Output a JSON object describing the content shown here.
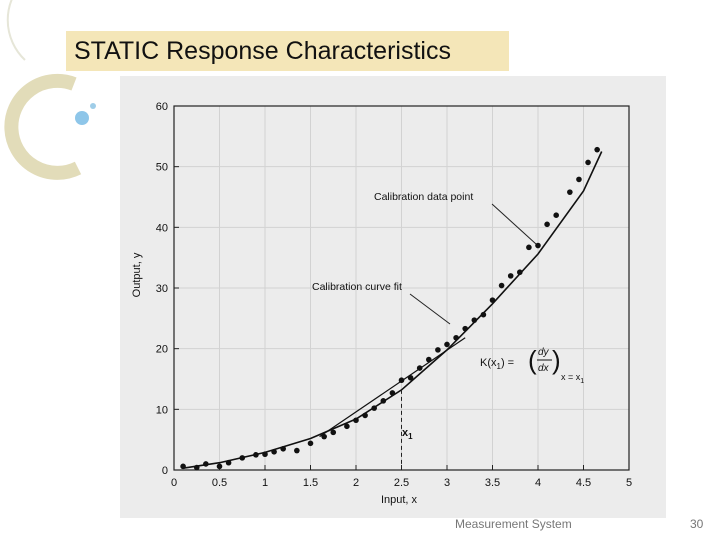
{
  "slide": {
    "title": "STATIC Response Characteristics",
    "footer": "Measurement System",
    "page_number": "30",
    "accent_color": "#f4e6b8"
  },
  "chart_data": {
    "type": "scatter",
    "title": "",
    "xlabel": "Input, x",
    "ylabel": "Output, y",
    "xlim": [
      0,
      5
    ],
    "ylim": [
      0,
      60
    ],
    "xticks": [
      0,
      0.5,
      1,
      1.5,
      2,
      2.5,
      3,
      3.5,
      4,
      4.5,
      5
    ],
    "yticks": [
      0,
      10,
      20,
      30,
      40,
      50,
      60
    ],
    "xtick_labels": [
      "0",
      "0.5",
      "1",
      "1.5",
      "2",
      "2.5",
      "3",
      "3.5",
      "4",
      "4.5",
      "5"
    ],
    "ytick_labels": [
      "0",
      "10",
      "20",
      "30",
      "40",
      "50",
      "60"
    ],
    "grid": true,
    "series": [
      {
        "kind": "points",
        "points": [
          [
            0.1,
            0.6
          ],
          [
            0.25,
            0.4
          ],
          [
            0.35,
            1.0
          ],
          [
            0.5,
            0.6
          ],
          [
            0.6,
            1.2
          ],
          [
            0.75,
            2.0
          ],
          [
            0.9,
            2.5
          ],
          [
            1.0,
            2.6
          ],
          [
            1.1,
            3.0
          ],
          [
            1.2,
            3.5
          ],
          [
            1.35,
            3.2
          ],
          [
            1.5,
            4.4
          ],
          [
            1.65,
            5.5
          ],
          [
            1.75,
            6.2
          ],
          [
            1.9,
            7.2
          ],
          [
            2.0,
            8.2
          ],
          [
            2.1,
            9.0
          ],
          [
            2.2,
            10.2
          ],
          [
            2.3,
            11.4
          ],
          [
            2.4,
            12.7
          ],
          [
            2.5,
            14.8
          ],
          [
            2.6,
            15.2
          ],
          [
            2.7,
            16.8
          ],
          [
            2.8,
            18.2
          ],
          [
            2.9,
            19.8
          ],
          [
            3.0,
            20.7
          ],
          [
            3.1,
            21.8
          ],
          [
            3.2,
            23.3
          ],
          [
            3.3,
            24.7
          ],
          [
            3.4,
            25.6
          ],
          [
            3.5,
            28.0
          ],
          [
            3.6,
            30.4
          ],
          [
            3.7,
            32.0
          ],
          [
            3.8,
            32.6
          ],
          [
            3.9,
            36.7
          ],
          [
            4.0,
            37.0
          ],
          [
            4.1,
            40.5
          ],
          [
            4.2,
            42.0
          ],
          [
            4.35,
            45.8
          ],
          [
            4.45,
            47.9
          ],
          [
            4.55,
            50.7
          ],
          [
            4.65,
            52.8
          ]
        ]
      },
      {
        "kind": "curve",
        "points": [
          [
            0.1,
            0.3
          ],
          [
            0.5,
            1.2
          ],
          [
            1.0,
            2.9
          ],
          [
            1.5,
            5.2
          ],
          [
            2.0,
            8.4
          ],
          [
            2.5,
            13.2
          ],
          [
            3.0,
            19.8
          ],
          [
            3.5,
            27.4
          ],
          [
            4.0,
            35.6
          ],
          [
            4.5,
            46.0
          ],
          [
            4.7,
            52.5
          ]
        ]
      },
      {
        "kind": "tangent",
        "points": [
          [
            1.6,
            5.5
          ],
          [
            3.2,
            21.8
          ]
        ]
      }
    ],
    "tangent_point_x": 2.5,
    "annotations": {
      "data_point": "Calibration data point",
      "curve_fit": "Calibration curve fit",
      "x1_label": "x",
      "x1_sub": "1",
      "k_left": "K(x",
      "k_sub": "1",
      "k_mid": ") =",
      "frac_num": "dy",
      "frac_den": "dx",
      "eval_text": "x = x",
      "eval_sub": "1"
    }
  }
}
